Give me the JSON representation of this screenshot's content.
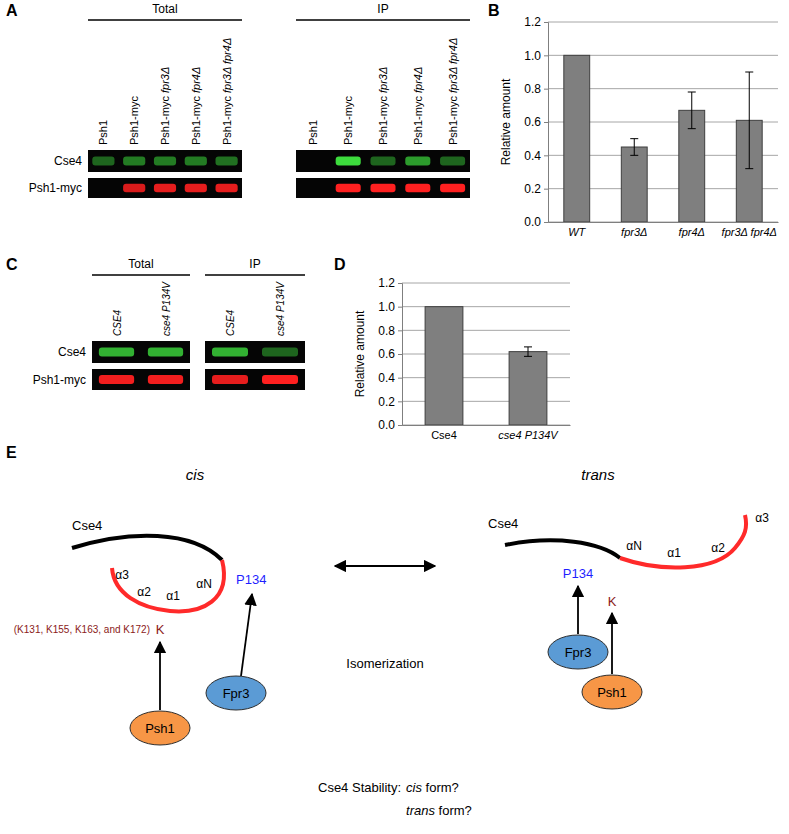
{
  "panel_labels": [
    "A",
    "B",
    "C",
    "D",
    "E"
  ],
  "blot_a": {
    "headers": [
      "Total",
      "IP"
    ],
    "lanes": [
      "Psh1",
      "Psh1-myc",
      "Psh1-myc fpr3Δ",
      "Psh1-myc fpr4Δ",
      "Psh1-myc fpr3Δ fpr4Δ"
    ],
    "rows": [
      {
        "label": "Cse4",
        "color": "#3ddc3d",
        "total": [
          0.45,
          0.55,
          0.55,
          0.55,
          0.5
        ],
        "ip": [
          0,
          1,
          0.45,
          0.7,
          0.45
        ]
      },
      {
        "label": "Psh1-myc",
        "color": "#ff2020",
        "total": [
          0,
          0.85,
          0.9,
          0.9,
          0.9
        ],
        "ip": [
          0,
          1,
          1,
          1,
          1
        ]
      }
    ]
  },
  "blot_c": {
    "headers": [
      "Total",
      "IP"
    ],
    "lanes": [
      "CSE4",
      "cse4 P134V"
    ],
    "rows": [
      {
        "label": "Cse4",
        "color": "#3ddc3d",
        "total": [
          0.8,
          0.8
        ],
        "ip": [
          0.8,
          0.45
        ]
      },
      {
        "label": "Psh1-myc",
        "color": "#ff2020",
        "total": [
          0.95,
          0.95
        ],
        "ip": [
          0.9,
          1
        ]
      }
    ]
  },
  "chart_data": [
    {
      "type": "bar",
      "y_label": "Relative amount",
      "categories": [
        "WT",
        "fpr3Δ",
        "fpr4Δ",
        "fpr3Δ fpr4Δ"
      ],
      "values": [
        1.0,
        0.45,
        0.67,
        0.61
      ],
      "errors": [
        null,
        0.05,
        0.11,
        0.29
      ],
      "color": "#7f7f7f",
      "ylim": [
        0,
        1.2
      ],
      "yticks": [
        {
          "value": 0,
          "label": "0.0"
        },
        0.2,
        0.4,
        0.6,
        0.8,
        {
          "value": 1,
          "label": "1.0"
        },
        1.2
      ],
      "grid": true
    },
    {
      "type": "bar",
      "y_label": "Relative amount",
      "categories": [
        "Cse4",
        "cse4 P134V"
      ],
      "values": [
        1.0,
        0.62
      ],
      "errors": [
        null,
        0.04
      ],
      "color": "#7f7f7f",
      "ylim": [
        0,
        1.2
      ],
      "yticks": [
        {
          "value": 0,
          "label": "0.0"
        },
        0.2,
        0.4,
        0.6,
        0.8,
        {
          "value": 1,
          "label": "1.0"
        },
        1.2
      ],
      "grid": true
    }
  ],
  "diagram": {
    "cis": {
      "label": "cis",
      "protein": "Cse4",
      "helices": [
        "α3",
        "α2",
        "α1",
        "αN"
      ],
      "proline": "P134",
      "lysine": "K",
      "lysine_sites": "(K131, K155, K163, and K172)",
      "isomerase": "Fpr3",
      "ligase": "Psh1"
    },
    "trans": {
      "label": "trans",
      "protein": "Cse4",
      "helices": [
        "α3",
        "α2",
        "α1",
        "αN"
      ],
      "proline": "P134",
      "lysine": "K",
      "isomerase": "Fpr3",
      "ligase": "Psh1"
    },
    "arrow_label": "Isomerization",
    "question": "Cse4 Stability:",
    "options": [
      "cis form?",
      "trans form?"
    ]
  }
}
